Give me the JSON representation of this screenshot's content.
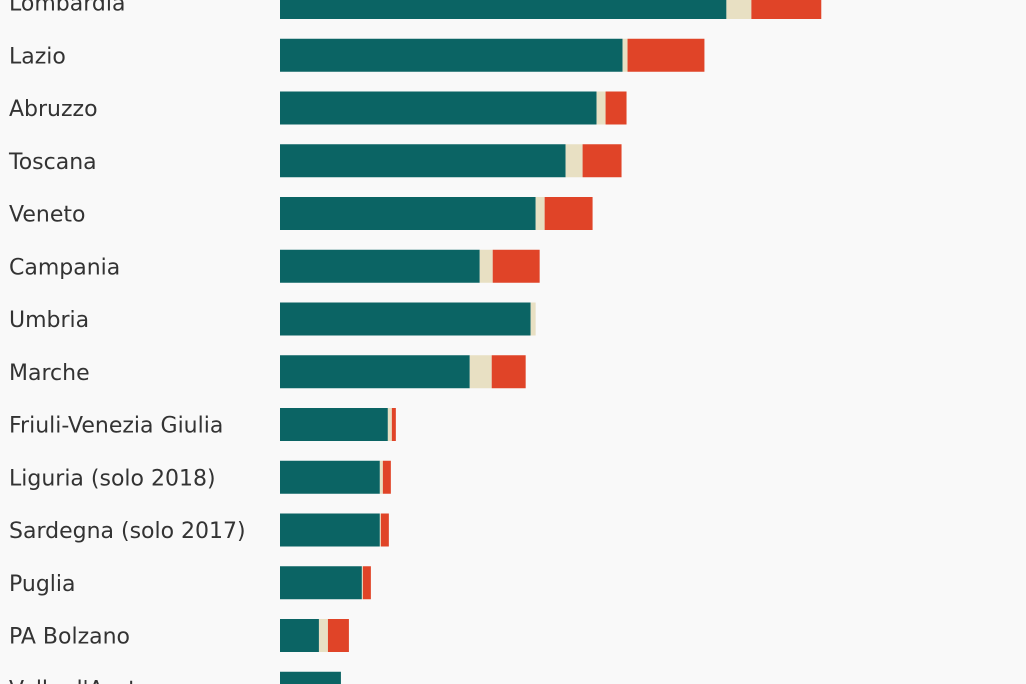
{
  "chart_data": {
    "type": "bar",
    "orientation": "horizontal",
    "stacked": true,
    "categories": [
      "Lombardia",
      "Lazio",
      "Abruzzo",
      "Toscana",
      "Veneto",
      "Campania",
      "Umbria",
      "Marche",
      "Friuli-Venezia Giulia",
      "Liguria (solo 2018)",
      "Sardegna (solo 2017)",
      "Puglia",
      "PA Bolzano",
      "Valle d'Aosta"
    ],
    "series": [
      {
        "color": "#0b6464",
        "values": [
          447,
          343,
          317,
          286,
          256,
          200,
          251,
          190,
          108,
          100,
          100,
          82,
          39,
          61
        ]
      },
      {
        "color": "#e8e0c3",
        "values": [
          25,
          5,
          9,
          17,
          9,
          13,
          5,
          22,
          4,
          3,
          1,
          1,
          9,
          0
        ]
      },
      {
        "color": "#e04428",
        "values": [
          70,
          77,
          21,
          39,
          48,
          47,
          0,
          34,
          4,
          8,
          8,
          8,
          21,
          0
        ]
      }
    ],
    "xlim": [
      0,
      747
    ],
    "grid": false,
    "legend": "none"
  }
}
